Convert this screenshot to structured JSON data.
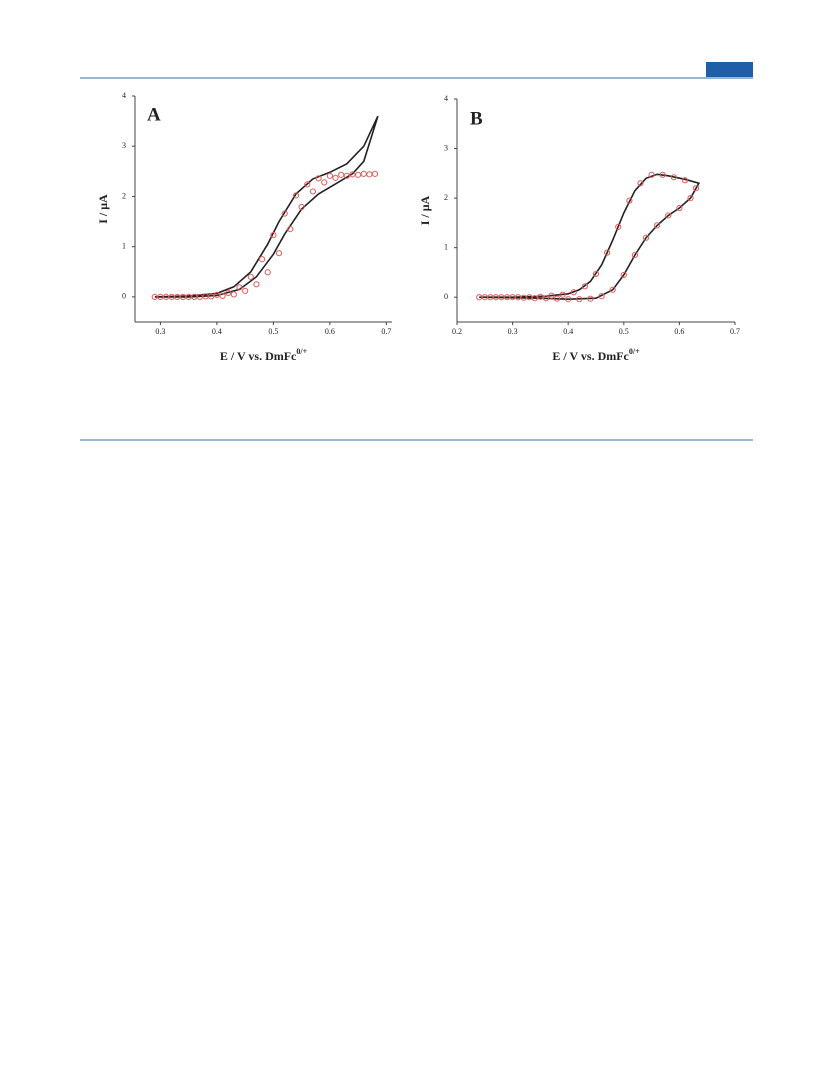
{
  "chart_data": [
    {
      "type": "line",
      "title": "A",
      "xlabel": "E / V vs. DmFc",
      "xlabel_sup": "0/+",
      "ylabel": "I / μA",
      "xlim": [
        0.255,
        0.71
      ],
      "xticks": [
        0.3,
        0.4,
        0.5,
        0.6,
        0.7
      ],
      "ylim": [
        -0.5,
        4
      ],
      "yticks": [
        0,
        1,
        2,
        3,
        4
      ],
      "series": [
        {
          "color": "#222222",
          "style": "line",
          "x": [
            0.29,
            0.35,
            0.4,
            0.44,
            0.47,
            0.5,
            0.52,
            0.55,
            0.58,
            0.61,
            0.64,
            0.66,
            0.685,
            0.66,
            0.63,
            0.6,
            0.57,
            0.54,
            0.51,
            0.49,
            0.46,
            0.43,
            0.4,
            0.35,
            0.29
          ],
          "values": [
            0,
            0,
            0.03,
            0.15,
            0.4,
            0.85,
            1.25,
            1.75,
            2.05,
            2.25,
            2.45,
            2.7,
            3.6,
            3.0,
            2.65,
            2.48,
            2.35,
            2.05,
            1.5,
            1.05,
            0.5,
            0.2,
            0.07,
            0.02,
            0
          ]
        },
        {
          "color": "#e05a5a",
          "style": "markers",
          "x": [
            0.29,
            0.31,
            0.33,
            0.35,
            0.37,
            0.39,
            0.41,
            0.43,
            0.45,
            0.47,
            0.49,
            0.51,
            0.53,
            0.55,
            0.57,
            0.59,
            0.61,
            0.63,
            0.65,
            0.67,
            0.68,
            0.66,
            0.64,
            0.62,
            0.6,
            0.58,
            0.56,
            0.54,
            0.52,
            0.5,
            0.48,
            0.46,
            0.44,
            0.42,
            0.4,
            0.38,
            0.36,
            0.34,
            0.32,
            0.3
          ],
          "values": [
            0,
            0,
            0,
            0,
            0,
            0.01,
            0.02,
            0.05,
            0.12,
            0.25,
            0.49,
            0.87,
            1.35,
            1.79,
            2.1,
            2.28,
            2.37,
            2.41,
            2.43,
            2.44,
            2.45,
            2.45,
            2.44,
            2.43,
            2.41,
            2.36,
            2.24,
            2.02,
            1.66,
            1.23,
            0.75,
            0.4,
            0.19,
            0.08,
            0.04,
            0.01,
            0,
            0,
            0,
            0
          ]
        }
      ]
    },
    {
      "type": "line",
      "title": "B",
      "xlabel": "E / V vs. DmFc",
      "xlabel_sup": "0/+",
      "ylabel": "I / μA",
      "xlim": [
        0.2,
        0.7
      ],
      "xticks": [
        0.2,
        0.3,
        0.4,
        0.5,
        0.6,
        0.7
      ],
      "ylim": [
        -0.5,
        4
      ],
      "yticks": [
        0,
        1,
        2,
        3,
        4
      ],
      "series": [
        {
          "color": "#222222",
          "style": "line",
          "x": [
            0.24,
            0.35,
            0.4,
            0.45,
            0.48,
            0.5,
            0.52,
            0.54,
            0.56,
            0.58,
            0.6,
            0.62,
            0.635,
            0.61,
            0.58,
            0.56,
            0.54,
            0.52,
            0.5,
            0.48,
            0.46,
            0.44,
            0.42,
            0.4,
            0.36,
            0.3,
            0.24
          ],
          "values": [
            0,
            -0.02,
            -0.04,
            -0.02,
            0.15,
            0.45,
            0.85,
            1.2,
            1.45,
            1.65,
            1.8,
            2.0,
            2.3,
            2.38,
            2.45,
            2.48,
            2.4,
            2.15,
            1.7,
            1.15,
            0.65,
            0.32,
            0.15,
            0.07,
            0.02,
            0,
            0
          ]
        },
        {
          "color": "#e05a5a",
          "style": "markers",
          "x": [
            0.24,
            0.26,
            0.28,
            0.3,
            0.32,
            0.34,
            0.36,
            0.38,
            0.4,
            0.42,
            0.44,
            0.46,
            0.48,
            0.5,
            0.52,
            0.54,
            0.56,
            0.58,
            0.6,
            0.62,
            0.63,
            0.61,
            0.59,
            0.57,
            0.55,
            0.53,
            0.51,
            0.49,
            0.47,
            0.45,
            0.43,
            0.41,
            0.39,
            0.37,
            0.35,
            0.33,
            0.31,
            0.29,
            0.27,
            0.25
          ],
          "values": [
            0,
            0,
            0,
            0,
            -0.01,
            -0.02,
            -0.02,
            -0.03,
            -0.04,
            -0.04,
            -0.03,
            0.02,
            0.15,
            0.45,
            0.85,
            1.2,
            1.45,
            1.65,
            1.8,
            2.0,
            2.2,
            2.36,
            2.42,
            2.47,
            2.47,
            2.3,
            1.95,
            1.42,
            0.9,
            0.47,
            0.22,
            0.1,
            0.05,
            0.03,
            0.01,
            0,
            0,
            0,
            0,
            0
          ]
        }
      ]
    }
  ]
}
